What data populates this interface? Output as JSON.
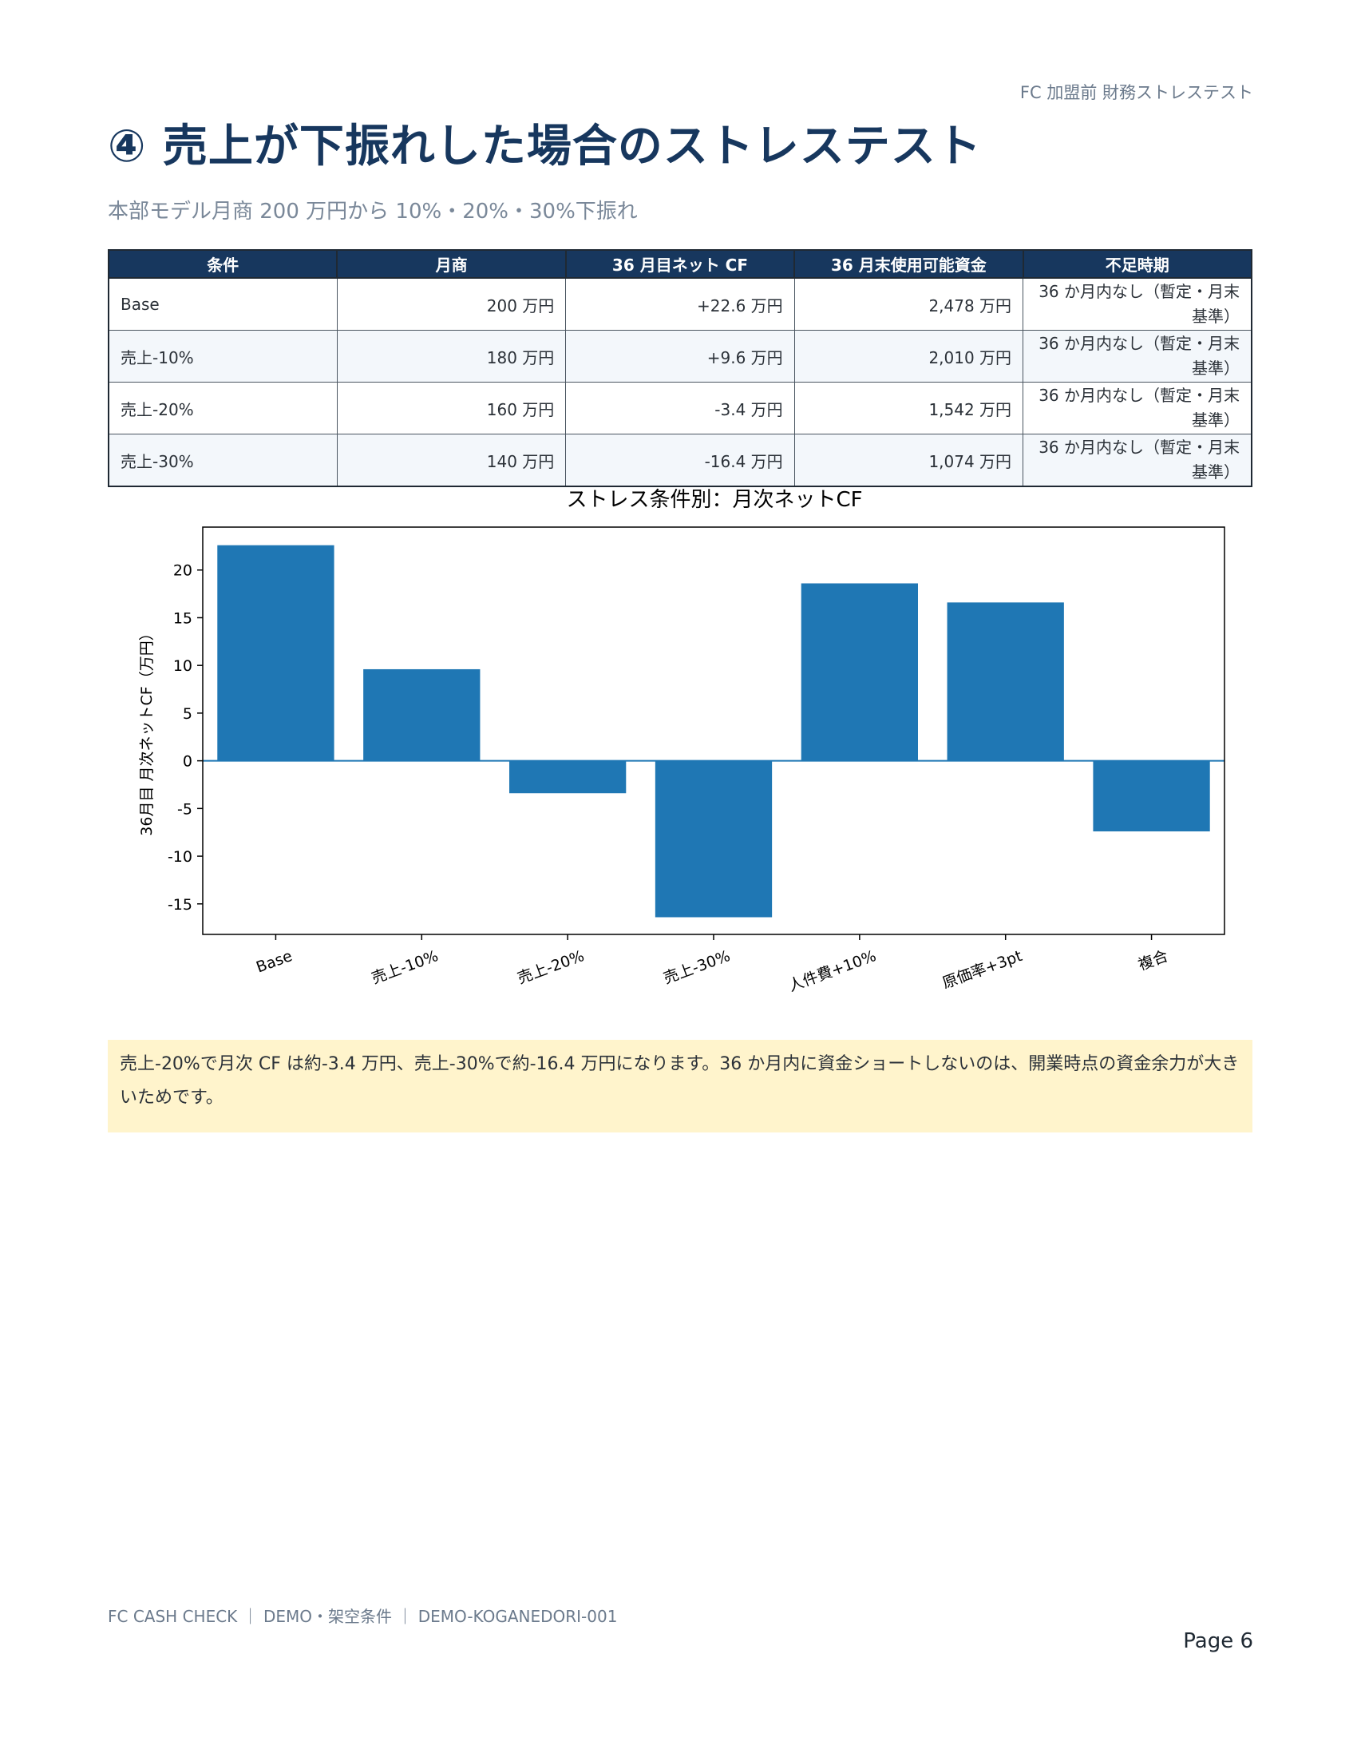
{
  "header": {
    "note": "FC 加盟前 財務ストレステスト"
  },
  "page": {
    "title": "④ 売上が下振れした場合のストレステスト",
    "subtitle": "本部モデル月商 200 万円から 10%・20%・30%下振れ"
  },
  "table": {
    "headers": [
      "条件",
      "月商",
      "36 月目ネット CF",
      "36 月末使用可能資金",
      "不足時期"
    ],
    "rows": [
      [
        "Base",
        "200 万円",
        "+22.6 万円",
        "2,478 万円",
        "36 か月内なし（暫定・月末基準）"
      ],
      [
        "売上-10%",
        "180 万円",
        "+9.6 万円",
        "2,010 万円",
        "36 か月内なし（暫定・月末基準）"
      ],
      [
        "売上-20%",
        "160 万円",
        "-3.4 万円",
        "1,542 万円",
        "36 か月内なし（暫定・月末基準）"
      ],
      [
        "売上-30%",
        "140 万円",
        "-16.4 万円",
        "1,074 万円",
        "36 か月内なし（暫定・月末基準）"
      ]
    ]
  },
  "chart_data": {
    "type": "bar",
    "title": "ストレス条件別：月次ネットCF",
    "xlabel": "",
    "ylabel": "36月目 月次ネットCF（万円）",
    "categories": [
      "Base",
      "売上-10%",
      "売上-20%",
      "売上-30%",
      "人件費+10%",
      "原価率+3pt",
      "複合"
    ],
    "values": [
      22.6,
      9.6,
      -3.4,
      -16.4,
      18.6,
      16.6,
      -7.4
    ],
    "ylim": [
      -18.2,
      24.5
    ],
    "yticks": [
      20,
      15,
      10,
      5,
      0,
      -5,
      -10,
      -15
    ],
    "grid": false,
    "color": "#1f77b4"
  },
  "note": {
    "text": "売上-20%で月次 CF は約-3.4 万円、売上-30%で約-16.4 万円になります。36 か月内に資金ショートしないのは、開業時点の資金余力が大きいためです。"
  },
  "footer": {
    "left": "FC CASH CHECK ｜ DEMO・架空条件 ｜ DEMO-KOGANEDORI-001",
    "page": "Page 6"
  }
}
